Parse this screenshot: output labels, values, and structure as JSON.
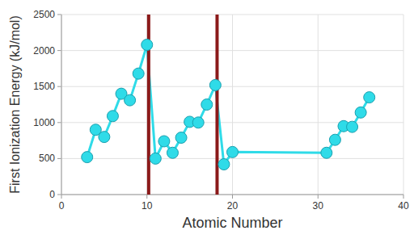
{
  "chart_data": {
    "type": "line",
    "x_label": "Atomic Number",
    "y_label": "First Ionization Energy (kJ/mol)",
    "x": [
      3,
      4,
      5,
      6,
      7,
      8,
      9,
      10,
      11,
      12,
      13,
      14,
      15,
      16,
      17,
      18,
      19,
      20,
      31,
      32,
      33,
      34,
      35,
      36
    ],
    "values": [
      520,
      900,
      800,
      1090,
      1400,
      1310,
      1680,
      2080,
      500,
      740,
      580,
      790,
      1010,
      1000,
      1250,
      1520,
      420,
      590,
      580,
      760,
      950,
      940,
      1140,
      1350
    ],
    "color": "#2fdbe8",
    "marker": "circle",
    "vlines": [
      10.2,
      18.2
    ],
    "xlim": [
      0,
      40
    ],
    "xticks": [
      0,
      10,
      20,
      30,
      40
    ],
    "ylim": [
      0,
      2500
    ],
    "yticks": [
      0,
      500,
      1000,
      1500,
      2000,
      2500
    ],
    "grid": true
  }
}
